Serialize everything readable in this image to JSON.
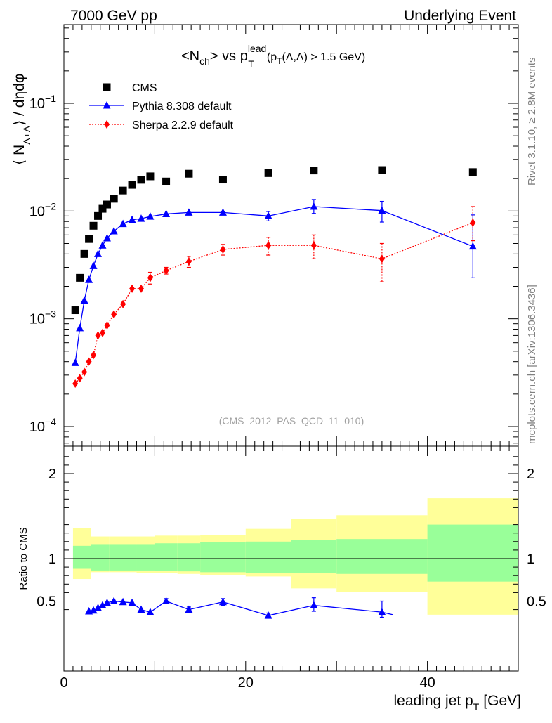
{
  "header": {
    "left": "7000 GeV pp",
    "right": "Underlying Event"
  },
  "side": {
    "rivet": "Rivet 3.1.10, ≥ 2.8M events",
    "mcplots": "mcplots.cern.ch [arXiv:1306.3436]"
  },
  "plot": {
    "title_main": "<N",
    "title_sub1": "ch",
    "title_mid": "> vs p",
    "title_sup": "lead",
    "title_sub2": "T",
    "title_cond": "(p",
    "title_cond_sub": "T",
    "title_cond_rest": "(Λ,Λ) > 1.5 GeV)",
    "ylabel_main": "⟨ N",
    "ylabel_sub": "Λ+Λ",
    "ylabel_rest": "⟩ / dηdφ",
    "watermark": "(CMS_2012_PAS_QCD_11_010)",
    "ratio_ylabel": "Ratio to CMS",
    "xlabel_main": "leading jet p",
    "xlabel_sub": "T",
    "xlabel_unit": "[GeV]"
  },
  "legend": [
    {
      "name": "CMS",
      "color": "#000000",
      "marker": "square"
    },
    {
      "name": "Pythia 8.308 default",
      "color": "#0000ff",
      "marker": "triangle"
    },
    {
      "name": "Sherpa 2.2.9 default",
      "color": "#ff0000",
      "marker": "diamond"
    }
  ],
  "chart_data": [
    {
      "type": "scatter",
      "panel": "main",
      "xlim": [
        0,
        50
      ],
      "ylim": [
        6e-05,
        0.6
      ],
      "yscale": "log",
      "ytick_labels": [
        "10^-4",
        "10^-3",
        "10^-2",
        "10^-1"
      ],
      "series": [
        {
          "name": "CMS",
          "color": "#000000",
          "x": [
            1.25,
            1.75,
            2.25,
            2.75,
            3.25,
            3.75,
            4.25,
            4.75,
            5.5,
            6.5,
            7.5,
            8.5,
            9.5,
            11.25,
            13.75,
            17.5,
            22.5,
            27.5,
            35,
            45
          ],
          "y": [
            0.0012,
            0.0024,
            0.004,
            0.0055,
            0.0073,
            0.009,
            0.0105,
            0.0115,
            0.013,
            0.0155,
            0.0175,
            0.0195,
            0.021,
            0.0188,
            0.0222,
            0.0196,
            0.0225,
            0.0238,
            0.024,
            0.023
          ]
        },
        {
          "name": "Pythia 8.308 default",
          "color": "#0000ff",
          "x": [
            1.25,
            1.75,
            2.25,
            2.75,
            3.25,
            3.75,
            4.25,
            4.75,
            5.5,
            6.5,
            7.5,
            8.5,
            9.5,
            11.25,
            13.75,
            17.5,
            22.5,
            27.5,
            35,
            45
          ],
          "y": [
            0.00039,
            0.00082,
            0.00148,
            0.0023,
            0.0031,
            0.004,
            0.0048,
            0.0056,
            0.0065,
            0.0076,
            0.0083,
            0.0085,
            0.0089,
            0.0094,
            0.0097,
            0.0097,
            0.009,
            0.011,
            0.0101,
            0.0047
          ],
          "err_low": [
            0,
            0,
            0,
            0,
            0,
            0,
            0,
            0,
            0,
            0,
            0,
            0,
            0,
            0,
            0,
            0,
            0.0009,
            0.0015,
            0.0022,
            0.0023
          ],
          "err_high": [
            0,
            0,
            0,
            0,
            0,
            0,
            0,
            0,
            0,
            0,
            0,
            0,
            0,
            0,
            0,
            0,
            0.0009,
            0.0018,
            0.0022,
            0.0045
          ]
        },
        {
          "name": "Sherpa 2.2.9 default",
          "color": "#ff0000",
          "x": [
            1.25,
            1.75,
            2.25,
            2.75,
            3.25,
            3.75,
            4.25,
            4.75,
            5.5,
            6.5,
            7.5,
            8.5,
            9.5,
            11.25,
            13.75,
            17.5,
            22.5,
            27.5,
            35,
            45
          ],
          "y": [
            0.00025,
            0.00028,
            0.00032,
            0.0004,
            0.00046,
            0.0007,
            0.00074,
            0.00087,
            0.0011,
            0.00137,
            0.0019,
            0.0019,
            0.0024,
            0.0028,
            0.0034,
            0.0044,
            0.0048,
            0.0048,
            0.0036,
            0.0078
          ],
          "err_low": [
            0,
            0,
            0,
            0,
            0,
            0,
            0,
            0,
            0,
            0,
            0,
            0,
            0.0003,
            0.0002,
            0.0004,
            0.0005,
            0.0009,
            0.0012,
            0.0014,
            0.0025
          ],
          "err_high": [
            0,
            0,
            0,
            0,
            0,
            0,
            0,
            0,
            0,
            0,
            0,
            0,
            0.0003,
            0.0002,
            0.0004,
            0.0005,
            0.0009,
            0.0012,
            0.0014,
            0.0032
          ]
        }
      ]
    },
    {
      "type": "line",
      "panel": "ratio",
      "xlim": [
        0,
        50
      ],
      "ylim": [
        0.34,
        2.3
      ],
      "xticks": [
        0,
        20,
        40
      ],
      "yticks_labeled": [
        0.5,
        1,
        2
      ],
      "reference_line": 1,
      "bands": {
        "edges": [
          1,
          3,
          5,
          8,
          10,
          12.5,
          15,
          20,
          25,
          30,
          40,
          50
        ],
        "inner_low": [
          0.88,
          0.86,
          0.86,
          0.86,
          0.855,
          0.85,
          0.84,
          0.83,
          0.83,
          0.82,
          0.73
        ],
        "inner_high": [
          1.15,
          1.17,
          1.17,
          1.17,
          1.18,
          1.18,
          1.19,
          1.2,
          1.22,
          1.23,
          1.4
        ],
        "outer_low": [
          0.76,
          0.84,
          0.84,
          0.83,
          0.83,
          0.82,
          0.81,
          0.79,
          0.65,
          0.61,
          0.3
        ],
        "outer_high": [
          1.36,
          1.26,
          1.26,
          1.26,
          1.27,
          1.27,
          1.28,
          1.35,
          1.47,
          1.51,
          1.71
        ],
        "inner_color": "#99ff99",
        "outer_color": "#ffff99"
      },
      "series": [
        {
          "name": "Pythia 8.308 default",
          "color": "#0000ff",
          "x": [
            2.75,
            3.25,
            3.75,
            4.25,
            4.75,
            5.5,
            6.5,
            7.5,
            8.5,
            9.5,
            11.25,
            13.75,
            17.5,
            22.5,
            27.5,
            35,
            36.2
          ],
          "y": [
            0.38,
            0.39,
            0.42,
            0.45,
            0.48,
            0.5,
            0.49,
            0.48,
            0.4,
            0.37,
            0.5,
            0.4,
            0.49,
            0.33,
            0.45,
            0.37,
            0.34
          ],
          "err_low": [
            0,
            0,
            0,
            0,
            0,
            0,
            0,
            0,
            0,
            0,
            0.03,
            0.03,
            0.04,
            0.03,
            0.07,
            0.06,
            0
          ],
          "err_high": [
            0,
            0,
            0,
            0,
            0,
            0,
            0,
            0,
            0,
            0,
            0.03,
            0.03,
            0.04,
            0.03,
            0.09,
            0.13,
            0
          ],
          "show_marker": [
            true,
            true,
            true,
            true,
            true,
            true,
            true,
            true,
            true,
            true,
            true,
            true,
            true,
            true,
            true,
            true,
            false
          ]
        }
      ]
    }
  ]
}
